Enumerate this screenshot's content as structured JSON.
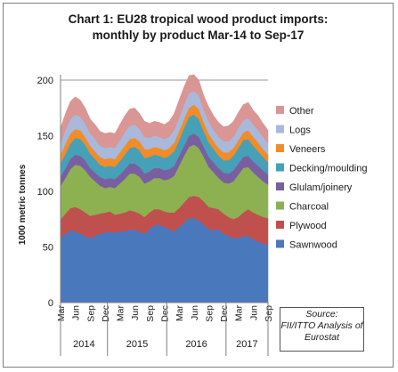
{
  "chart_data": {
    "type": "area",
    "stacked": true,
    "title": "Chart 1: EU28 tropical wood product imports:",
    "subtitle": "monthly by product Mar-14 to Sep-17",
    "ylabel": "1000 metric tonnes",
    "xlabel": "",
    "ylim": [
      0,
      200
    ],
    "y_ticks": [
      "0",
      "50",
      "100",
      "150",
      "200"
    ],
    "grid": "horizontal",
    "legend_position": "right",
    "x_month_labels": [
      "Mar",
      "Jun",
      "Sep",
      "Dec",
      "Mar",
      "Jun",
      "Sep",
      "Dec",
      "Mar",
      "Jun",
      "Sep",
      "Dec",
      "Mar",
      "Jun",
      "Sep"
    ],
    "x_month_labels_shown": [
      "Mar",
      "Jun",
      "Sep",
      "Dec",
      "Mar",
      "Jun",
      "Sep",
      "Dec",
      "Mar",
      "Jun",
      "Sep",
      "Dec",
      "Mar",
      "Jun",
      "Sep"
    ],
    "year_labels": [
      "2014",
      "2015",
      "2016",
      "2017"
    ],
    "x": [
      "Mar-14",
      "Apr-14",
      "May-14",
      "Jun-14",
      "Jul-14",
      "Aug-14",
      "Sep-14",
      "Oct-14",
      "Nov-14",
      "Dec-14",
      "Jan-15",
      "Feb-15",
      "Mar-15",
      "Apr-15",
      "May-15",
      "Jun-15",
      "Jul-15",
      "Aug-15",
      "Sep-15",
      "Oct-15",
      "Nov-15",
      "Dec-15",
      "Jan-16",
      "Feb-16",
      "Mar-16",
      "Apr-16",
      "May-16",
      "Jun-16",
      "Jul-16",
      "Aug-16",
      "Sep-16",
      "Oct-16",
      "Nov-16",
      "Dec-16",
      "Jan-17",
      "Feb-17",
      "Mar-17",
      "Apr-17",
      "May-17",
      "Jun-17",
      "Jul-17",
      "Aug-17",
      "Sep-17"
    ],
    "series": [
      {
        "name": "Sawnwood",
        "color": "#4a78bd",
        "values": [
          58,
          62,
          65,
          64,
          62,
          60,
          58,
          60,
          62,
          63,
          64,
          63,
          64,
          64,
          66,
          65,
          64,
          62,
          66,
          70,
          70,
          68,
          66,
          64,
          68,
          72,
          76,
          76,
          74,
          70,
          66,
          65,
          66,
          62,
          60,
          58,
          58,
          60,
          60,
          57,
          55,
          53,
          52
        ]
      },
      {
        "name": "Plywood",
        "color": "#c0504d",
        "values": [
          17,
          18,
          20,
          22,
          22,
          21,
          20,
          19,
          18,
          18,
          18,
          16,
          16,
          17,
          17,
          17,
          16,
          15,
          15,
          14,
          14,
          14,
          15,
          17,
          17,
          18,
          19,
          20,
          21,
          21,
          20,
          20,
          18,
          18,
          17,
          17,
          19,
          21,
          24,
          24,
          24,
          24,
          24
        ]
      },
      {
        "name": "Charcoal",
        "color": "#8db150",
        "values": [
          30,
          32,
          35,
          38,
          39,
          38,
          35,
          30,
          25,
          22,
          22,
          24,
          27,
          30,
          33,
          34,
          33,
          30,
          28,
          28,
          28,
          28,
          30,
          33,
          38,
          42,
          45,
          46,
          44,
          40,
          36,
          32,
          28,
          28,
          30,
          34,
          38,
          40,
          38,
          36,
          34,
          32,
          30
        ]
      },
      {
        "name": "Glulam/joinery",
        "color": "#7a5fa0",
        "values": [
          8,
          9,
          9,
          9,
          9,
          9,
          8,
          8,
          8,
          8,
          8,
          8,
          8,
          9,
          9,
          9,
          9,
          9,
          9,
          9,
          9,
          9,
          9,
          9,
          9,
          9,
          10,
          10,
          10,
          9,
          9,
          9,
          9,
          9,
          9,
          10,
          10,
          10,
          10,
          10,
          10,
          10,
          9
        ]
      },
      {
        "name": "Decking/moulding",
        "color": "#46a0b8",
        "values": [
          12,
          13,
          14,
          15,
          15,
          14,
          13,
          12,
          11,
          11,
          11,
          11,
          12,
          13,
          14,
          15,
          15,
          14,
          13,
          12,
          11,
          11,
          12,
          13,
          14,
          16,
          17,
          17,
          16,
          14,
          13,
          12,
          11,
          11,
          12,
          13,
          14,
          15,
          15,
          14,
          13,
          12,
          11
        ]
      },
      {
        "name": "Veneers",
        "color": "#f28c28",
        "values": [
          8,
          9,
          9,
          8,
          8,
          7,
          7,
          7,
          7,
          7,
          7,
          7,
          8,
          8,
          8,
          8,
          8,
          8,
          7,
          7,
          7,
          7,
          7,
          8,
          8,
          8,
          8,
          9,
          9,
          8,
          8,
          7,
          7,
          7,
          7,
          7,
          7,
          7,
          8,
          8,
          8,
          7,
          7
        ]
      },
      {
        "name": "Logs",
        "color": "#a8b9dc",
        "values": [
          11,
          12,
          13,
          13,
          12,
          12,
          11,
          11,
          10,
          10,
          10,
          10,
          11,
          12,
          12,
          12,
          11,
          11,
          10,
          10,
          10,
          10,
          10,
          11,
          12,
          13,
          13,
          12,
          12,
          11,
          11,
          10,
          10,
          10,
          10,
          10,
          11,
          11,
          11,
          11,
          11,
          11,
          10
        ]
      },
      {
        "name": "Other",
        "color": "#d99694",
        "values": [
          13,
          15,
          16,
          16,
          15,
          14,
          13,
          13,
          13,
          13,
          13,
          13,
          14,
          15,
          15,
          15,
          14,
          14,
          13,
          13,
          13,
          13,
          14,
          15,
          16,
          16,
          16,
          15,
          14,
          13,
          13,
          13,
          13,
          13,
          14,
          14,
          14,
          14,
          14,
          13,
          13,
          12,
          12
        ]
      }
    ]
  },
  "source": {
    "line1": "Source:",
    "line2": "FII/ITTO Analysis of",
    "line3": "Eurostat"
  }
}
